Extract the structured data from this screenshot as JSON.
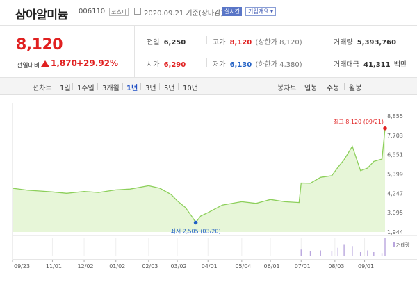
{
  "header": {
    "company": "삼아알미늄",
    "code": "006110",
    "market": "코스피",
    "date": "2020.09.21 기준(장마감)",
    "realtime_label": "실시간",
    "summary_button": "기업개요 ▾"
  },
  "price": {
    "current": "8,120",
    "change_label": "전일대비",
    "change_value": "1,870",
    "change_percent": "+29.92%"
  },
  "stats": {
    "prev_close": {
      "label": "전일",
      "value": "6,250"
    },
    "high": {
      "label": "고가",
      "value": "8,120",
      "sub": "(상한가 8,120)"
    },
    "volume": {
      "label": "거래량",
      "value": "5,393,760"
    },
    "open": {
      "label": "시가",
      "value": "6,290"
    },
    "low": {
      "label": "저가",
      "value": "6,130",
      "sub": "(하한가 4,380)"
    },
    "trade_amount": {
      "label": "거래대금",
      "value": "41,311",
      "unit": "백만"
    }
  },
  "periods": {
    "title": "선차트",
    "items": [
      "1일",
      "1주일",
      "3개월",
      "1년",
      "3년",
      "5년",
      "10년"
    ],
    "active": "1년"
  },
  "candle": {
    "title": "봉차트",
    "items": [
      "일봉",
      "주봉",
      "월봉"
    ]
  },
  "colors": {
    "up": "#e02020",
    "down": "#1f5fc4",
    "line": "#8ccf5a",
    "fill": "#e7f6d8",
    "volume": "#b9a6de",
    "active": "#1f4fc4"
  },
  "chart_data": {
    "type": "area",
    "y_ticks": [
      "8,855",
      "7,703",
      "6,551",
      "5,399",
      "4,247",
      "3,095",
      "1,944"
    ],
    "ylim": [
      1944,
      8855
    ],
    "x_ticks": [
      "09/23",
      "11/01",
      "12/02",
      "01/02",
      "02/03",
      "03/02",
      "04/01",
      "05/04",
      "06/01",
      "07/01",
      "08/03",
      "09/01"
    ],
    "max_annotation": {
      "label": "최고 8,120 (09/21)",
      "value": 8120
    },
    "min_annotation": {
      "label": "최저 2,505 (03/20)",
      "value": 2505
    },
    "volume_label": "거래량",
    "x": [
      "2019-09-23",
      "2019-10-08",
      "2019-10-21",
      "2019-11-01",
      "2019-11-15",
      "2019-12-02",
      "2019-12-16",
      "2020-01-02",
      "2020-01-16",
      "2020-02-03",
      "2020-02-14",
      "2020-02-25",
      "2020-03-02",
      "2020-03-10",
      "2020-03-17",
      "2020-03-20",
      "2020-03-25",
      "2020-04-01",
      "2020-04-15",
      "2020-05-04",
      "2020-05-18",
      "2020-06-01",
      "2020-06-15",
      "2020-06-29",
      "2020-07-01",
      "2020-07-10",
      "2020-07-20",
      "2020-07-31",
      "2020-08-06",
      "2020-08-12",
      "2020-08-20",
      "2020-08-28",
      "2020-09-04",
      "2020-09-10",
      "2020-09-18",
      "2020-09-21"
    ],
    "values": [
      4550,
      4430,
      4380,
      4330,
      4250,
      4360,
      4300,
      4450,
      4500,
      4700,
      4550,
      4180,
      3800,
      3400,
      2800,
      2505,
      2900,
      3100,
      3550,
      3750,
      3650,
      3880,
      3750,
      3700,
      4860,
      4850,
      5200,
      5300,
      5800,
      6250,
      7050,
      5600,
      5750,
      6150,
      6290,
      8120
    ],
    "volume": [
      0,
      0,
      0,
      0,
      0,
      0,
      0,
      0,
      0,
      0,
      0,
      0,
      0,
      0,
      0,
      0,
      0,
      0,
      0,
      0,
      0,
      0,
      0,
      0,
      0.35,
      0.25,
      0.3,
      0.28,
      0.45,
      0.62,
      0.55,
      0.2,
      0.3,
      0.2,
      0.15,
      1.0
    ]
  }
}
